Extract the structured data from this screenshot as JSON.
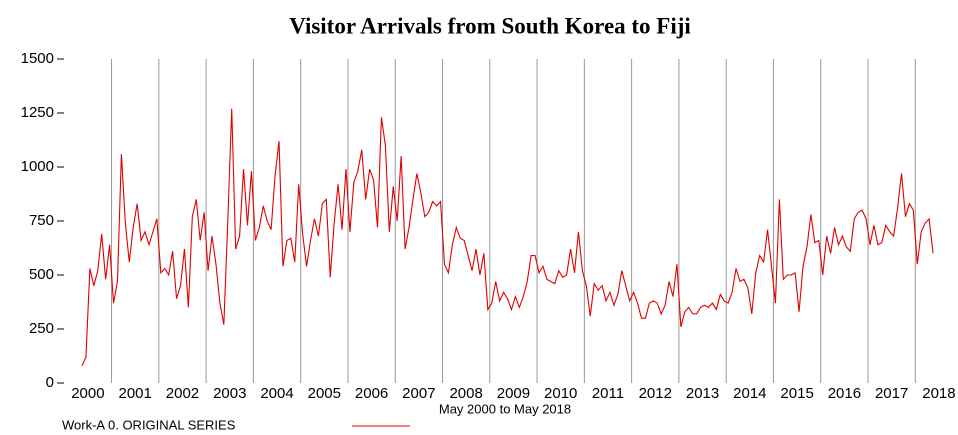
{
  "chart_data": {
    "type": "line",
    "title": "Visitor Arrivals from South Korea to Fiji",
    "subtitle": "May 2000  to May 2018",
    "categories": [
      "2000",
      null,
      null,
      null,
      null,
      null,
      null,
      null,
      null,
      null,
      null,
      null,
      "2001",
      null,
      null,
      null,
      null,
      null,
      null,
      null,
      null,
      null,
      null,
      null,
      "2002",
      null,
      null,
      null,
      null,
      null,
      null,
      null,
      null,
      null,
      null,
      null,
      "2003",
      null,
      null,
      null,
      null,
      null,
      null,
      null,
      null,
      null,
      null,
      null,
      "2004",
      null,
      null,
      null,
      null,
      null,
      null,
      null,
      null,
      null,
      null,
      null,
      "2005",
      null,
      null,
      null,
      null,
      null,
      null,
      null,
      null,
      null,
      null,
      null,
      "2006",
      null,
      null,
      null,
      null,
      null,
      null,
      null,
      null,
      null,
      null,
      null,
      "2007",
      null,
      null,
      null,
      null,
      null,
      null,
      null,
      null,
      null,
      null,
      null,
      "2008",
      null,
      null,
      null,
      null,
      null,
      null,
      null,
      null,
      null,
      null,
      null,
      "2009",
      null,
      null,
      null,
      null,
      null,
      null,
      null,
      null,
      null,
      null,
      null,
      "2010",
      null,
      null,
      null,
      null,
      null,
      null,
      null,
      null,
      null,
      null,
      null,
      "2011",
      null,
      null,
      null,
      null,
      null,
      null,
      null,
      null,
      null,
      null,
      null,
      "2012",
      null,
      null,
      null,
      null,
      null,
      null,
      null,
      null,
      null,
      null,
      null,
      "2013",
      null,
      null,
      null,
      null,
      null,
      null,
      null,
      null,
      null,
      null,
      null,
      "2014",
      null,
      null,
      null,
      null,
      null,
      null,
      null,
      null,
      null,
      null,
      null,
      "2015",
      null,
      null,
      null,
      null,
      null,
      null,
      null,
      null,
      null,
      null,
      null,
      "2016",
      null,
      null,
      null,
      null,
      null,
      null,
      null,
      null,
      null,
      null,
      null,
      "2017",
      null,
      null,
      null,
      null,
      null,
      null,
      null,
      null,
      null,
      null,
      null,
      "2018"
    ],
    "series": [
      {
        "name": "Work-A 0. ORIGINAL SERIES",
        "color": "#e00000",
        "values": [
          80,
          120,
          530,
          450,
          520,
          690,
          480,
          640,
          370,
          470,
          1060,
          740,
          560,
          720,
          830,
          660,
          700,
          640,
          700,
          760,
          510,
          530,
          500,
          610,
          390,
          450,
          620,
          350,
          770,
          850,
          660,
          790,
          520,
          680,
          550,
          370,
          270,
          750,
          1270,
          620,
          680,
          990,
          730,
          980,
          660,
          720,
          820,
          750,
          710,
          960,
          1120,
          540,
          660,
          670,
          560,
          920,
          690,
          540,
          660,
          760,
          680,
          830,
          850,
          490,
          740,
          920,
          710,
          990,
          700,
          930,
          980,
          1080,
          850,
          990,
          940,
          720,
          1230,
          1100,
          700,
          910,
          750,
          1050,
          620,
          720,
          850,
          970,
          880,
          770,
          790,
          840,
          820,
          840,
          550,
          510,
          640,
          720,
          670,
          660,
          590,
          520,
          620,
          500,
          600,
          340,
          370,
          470,
          380,
          420,
          390,
          340,
          400,
          350,
          400,
          470,
          590,
          590,
          510,
          540,
          480,
          470,
          460,
          520,
          490,
          500,
          620,
          510,
          700,
          520,
          450,
          310,
          460,
          430,
          450,
          380,
          420,
          360,
          410,
          520,
          450,
          380,
          420,
          370,
          300,
          300,
          370,
          380,
          370,
          320,
          360,
          470,
          400,
          550,
          260,
          330,
          350,
          320,
          320,
          350,
          360,
          350,
          370,
          340,
          410,
          380,
          370,
          420,
          530,
          470,
          480,
          440,
          320,
          510,
          590,
          560,
          710,
          540,
          370,
          850,
          480,
          500,
          500,
          510,
          330,
          540,
          630,
          780,
          650,
          660,
          500,
          680,
          600,
          720,
          640,
          680,
          630,
          610,
          760,
          790,
          800,
          760,
          640,
          730,
          640,
          650,
          730,
          700,
          680,
          810,
          970,
          770,
          830,
          800,
          550,
          700,
          740,
          760,
          600
        ]
      }
    ],
    "ylim": [
      0,
      1500
    ],
    "yticks": [
      0,
      250,
      500,
      750,
      1000,
      1250,
      1500
    ],
    "grid": true
  }
}
